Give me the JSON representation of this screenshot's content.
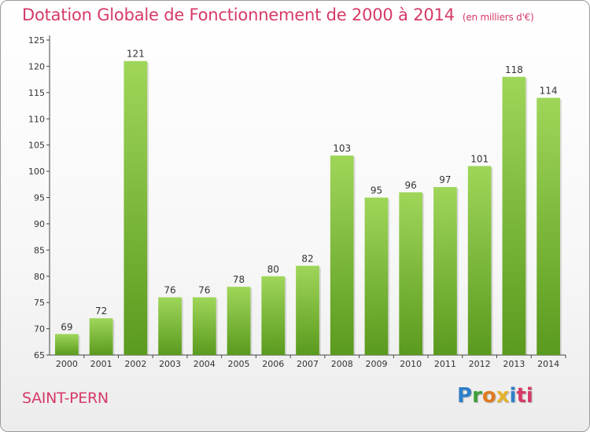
{
  "chart_data": {
    "type": "bar",
    "title": "Dotation Globale de Fonctionnement de 2000 à 2014",
    "subtitle": "(en milliers d'€)",
    "categories": [
      "2000",
      "2001",
      "2002",
      "2003",
      "2004",
      "2005",
      "2006",
      "2007",
      "2008",
      "2009",
      "2010",
      "2011",
      "2012",
      "2013",
      "2014"
    ],
    "values": [
      69,
      72,
      121,
      76,
      76,
      78,
      80,
      82,
      103,
      95,
      96,
      97,
      101,
      118,
      114
    ],
    "ylim": [
      65,
      125
    ],
    "yticks": [
      65,
      70,
      75,
      80,
      85,
      90,
      95,
      100,
      105,
      110,
      115,
      120,
      125
    ],
    "grid": false,
    "bar_color": "#7cc12e"
  },
  "footer": {
    "commune": "SAINT-PERN",
    "logo_parts": [
      "P",
      "r",
      "o",
      "x",
      "i",
      "ti"
    ]
  },
  "colors": {
    "title": "#d63a66",
    "bar_light": "#9fd65a",
    "bar_dark": "#5a9a1e"
  }
}
